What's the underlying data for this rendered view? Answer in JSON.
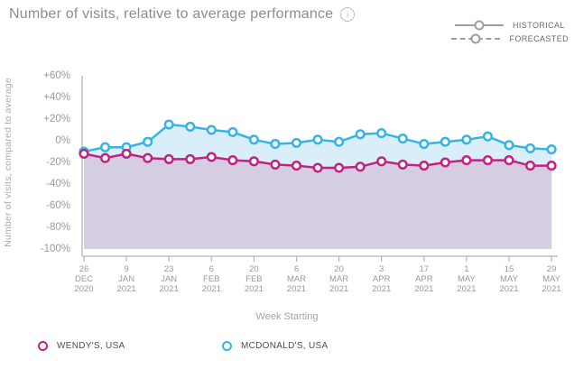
{
  "header": {
    "title": "Number of visits, relative to average performance"
  },
  "style_legend": {
    "historical": "HISTORICAL",
    "forecasted": "FORECASTED"
  },
  "chart_data": {
    "type": "line",
    "title": "Number of visits, relative to average performance",
    "xlabel": "Week Starting",
    "ylabel": "Number of visits, compared to average",
    "ylim": [
      -100,
      60
    ],
    "grid": false,
    "legend_position": "bottom",
    "line_styles": {
      "historical": "solid",
      "forecasted": "dashed"
    },
    "x_description": "23 weekly points from 26 DEC 2020 to 29 MAY 2021; axis ticks every 2 weeks",
    "yticks": [
      {
        "v": 60,
        "label": "+60%"
      },
      {
        "v": 40,
        "label": "+40%"
      },
      {
        "v": 20,
        "label": "+20%"
      },
      {
        "v": 0,
        "label": "0%"
      },
      {
        "v": -20,
        "label": "-20%"
      },
      {
        "v": -40,
        "label": "-40%"
      },
      {
        "v": -60,
        "label": "-60%"
      },
      {
        "v": -80,
        "label": "-80%"
      },
      {
        "v": -100,
        "label": "-100%"
      }
    ],
    "xticks": [
      {
        "i": 0,
        "label": "26\nDEC\n2020"
      },
      {
        "i": 2,
        "label": "9\nJAN\n2021"
      },
      {
        "i": 4,
        "label": "23\nJAN\n2021"
      },
      {
        "i": 6,
        "label": "6\nFEB\n2021"
      },
      {
        "i": 8,
        "label": "20\nFEB\n2021"
      },
      {
        "i": 10,
        "label": "6\nMAR\n2021"
      },
      {
        "i": 12,
        "label": "20\nMAR\n2021"
      },
      {
        "i": 14,
        "label": "3\nAPR\n2021"
      },
      {
        "i": 16,
        "label": "17\nAPR\n2021"
      },
      {
        "i": 18,
        "label": "1\nMAY\n2021"
      },
      {
        "i": 20,
        "label": "15\nMAY\n2021"
      },
      {
        "i": 22,
        "label": "29\nMAY\n2021"
      }
    ],
    "series": [
      {
        "name": "WENDY'S, USA",
        "style": "historical",
        "color": "#c22383",
        "fill": "#d5cee3",
        "values": [
          -12,
          -16,
          -12,
          -16,
          -17,
          -17,
          -15,
          -18,
          -19,
          -22,
          -23,
          -25,
          -25,
          -24,
          -19,
          -22,
          -23,
          -20,
          -18,
          -18,
          -18,
          -23,
          -23
        ]
      },
      {
        "name": "MCDONALD'S, USA",
        "style": "historical",
        "color": "#35b4e5",
        "fill": "#d9eef9",
        "values": [
          -10,
          -6,
          -6,
          -1,
          15,
          13,
          10,
          8,
          1,
          -3,
          -2,
          1,
          -1,
          6,
          7,
          2,
          -3,
          -1,
          1,
          4,
          -4,
          -7,
          -8
        ]
      }
    ]
  }
}
